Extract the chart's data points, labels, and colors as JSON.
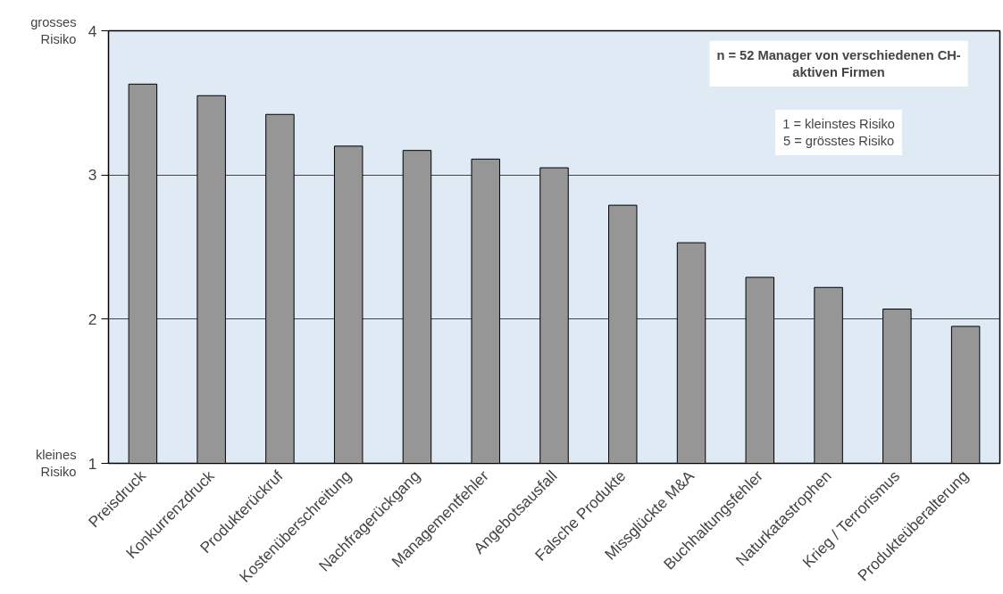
{
  "chart_data": {
    "type": "bar",
    "categories": [
      "Preisdruck",
      "Konkurrenzdruck",
      "Produkterückruf",
      "Kostenüberschreitung",
      "Nachfragerückgang",
      "Managementfehler",
      "Angebotsausfall",
      "Falsche Produkte",
      "Missglückte M&A",
      "Buchhaltungsfehler",
      "Naturkatastrophen",
      "Krieg / Terrorismus",
      "Produkteüberalterung"
    ],
    "values": [
      3.63,
      3.55,
      3.42,
      3.2,
      3.17,
      3.11,
      3.05,
      2.79,
      2.53,
      2.29,
      2.22,
      2.07,
      1.95
    ],
    "color": "#969696",
    "ylim": [
      1,
      4
    ],
    "yticks": [
      1,
      2,
      3,
      4
    ],
    "grid": "y",
    "annotations": [
      "grosses\nRisiko",
      "kleines\nRisiko",
      "n = 52 Manager von verschiedenen CH-\naktiven Firmen",
      "1 = kleinstes Risiko\n5 = grösstes Risiko"
    ]
  }
}
